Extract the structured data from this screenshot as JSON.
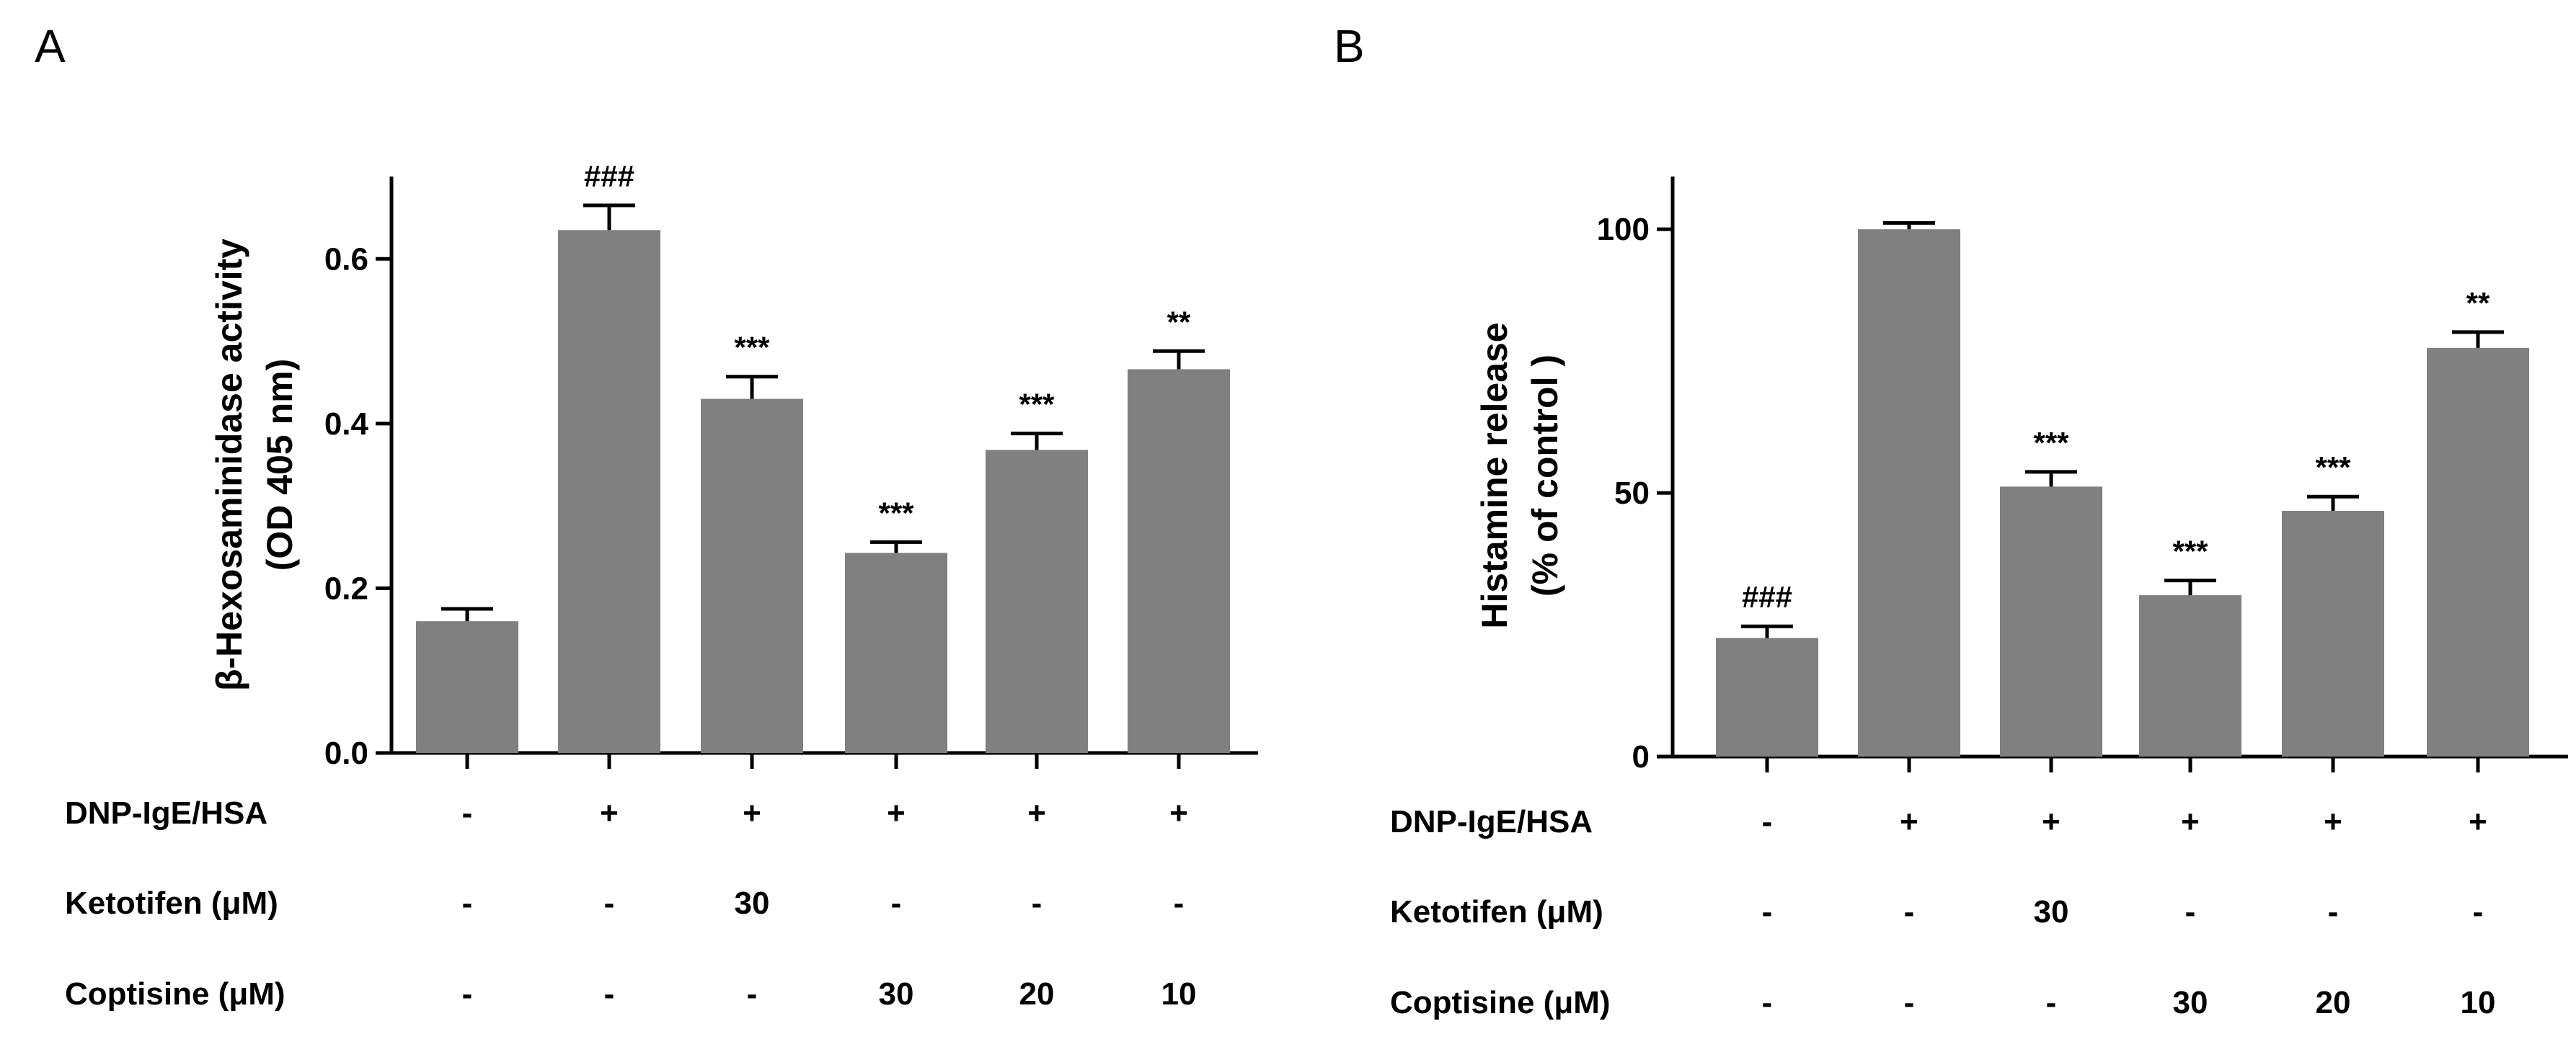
{
  "colors": {
    "bar": "#808080",
    "axis": "#000000",
    "background": "#ffffff"
  },
  "chart_data": [
    {
      "type": "bar",
      "panel_label": "A",
      "title": "",
      "ylabel_lines": [
        "β-Hexosaminidase activity",
        "(OD 405 nm)"
      ],
      "ylim": [
        0,
        0.7
      ],
      "yticks": [
        0.0,
        0.2,
        0.4,
        0.6
      ],
      "ytick_labels": [
        "0.0",
        "0.2",
        "0.4",
        "0.6"
      ],
      "grid": false,
      "values": [
        0.16,
        0.635,
        0.43,
        0.243,
        0.368,
        0.466
      ],
      "errors": [
        0.015,
        0.03,
        0.027,
        0.013,
        0.02,
        0.022
      ],
      "significance": [
        "",
        "###",
        "***",
        "***",
        "***",
        "**"
      ],
      "conditions": [
        {
          "label": "DNP-IgE/HSA",
          "values": [
            "-",
            "+",
            "+",
            "+",
            "+",
            "+"
          ]
        },
        {
          "label": "Ketotifen (μM)",
          "values": [
            "-",
            "-",
            "30",
            "-",
            "-",
            "-"
          ]
        },
        {
          "label": "Coptisine (μM)",
          "values": [
            "-",
            "-",
            "-",
            "30",
            "20",
            "10"
          ]
        }
      ]
    },
    {
      "type": "bar",
      "panel_label": "B",
      "title": "",
      "ylabel_lines": [
        "Histamine release",
        "(% of control )"
      ],
      "ylim": [
        0,
        110
      ],
      "yticks": [
        0,
        50,
        100
      ],
      "ytick_labels": [
        "0",
        "50",
        "100"
      ],
      "grid": false,
      "values": [
        22.5,
        100.0,
        51.2,
        30.6,
        46.6,
        77.5
      ],
      "errors": [
        2.2,
        1.2,
        2.8,
        2.8,
        2.7,
        3.0
      ],
      "significance": [
        "###",
        "",
        "***",
        "***",
        "***",
        "**"
      ],
      "conditions": [
        {
          "label": "DNP-IgE/HSA",
          "values": [
            "-",
            "+",
            "+",
            "+",
            "+",
            "+"
          ]
        },
        {
          "label": "Ketotifen (μM)",
          "values": [
            "-",
            "-",
            "30",
            "-",
            "-",
            "-"
          ]
        },
        {
          "label": "Coptisine (μM)",
          "values": [
            "-",
            "-",
            "-",
            "30",
            "20",
            "10"
          ]
        }
      ]
    }
  ]
}
